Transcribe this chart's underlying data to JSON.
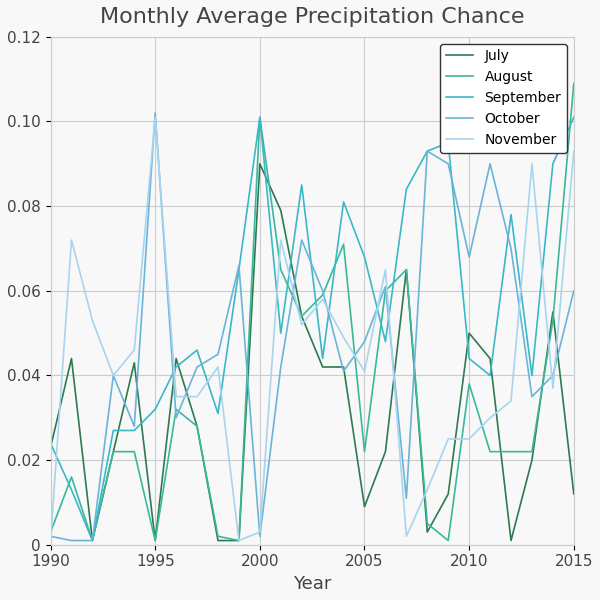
{
  "title": "Monthly Average Precipitation Chance",
  "xlabel": "Year",
  "ylim": [
    0,
    0.12
  ],
  "years": [
    1990,
    1991,
    1992,
    1993,
    1994,
    1995,
    1996,
    1997,
    1998,
    1999,
    2000,
    2001,
    2002,
    2003,
    2004,
    2005,
    2006,
    2007,
    2008,
    2009,
    2010,
    2011,
    2012,
    2013,
    2014,
    2015
  ],
  "series": {
    "July": {
      "color": "#2d7a4f",
      "values": [
        0.023,
        0.044,
        0.001,
        0.022,
        0.043,
        0.001,
        0.044,
        0.028,
        0.001,
        0.001,
        0.09,
        0.079,
        0.054,
        0.042,
        0.042,
        0.009,
        0.022,
        0.065,
        0.003,
        0.012,
        0.05,
        0.044,
        0.001,
        0.02,
        0.055,
        0.012
      ]
    },
    "August": {
      "color": "#3ab89a",
      "values": [
        0.003,
        0.016,
        0.001,
        0.022,
        0.022,
        0.001,
        0.032,
        0.028,
        0.002,
        0.001,
        0.101,
        0.065,
        0.054,
        0.059,
        0.071,
        0.022,
        0.06,
        0.065,
        0.005,
        0.001,
        0.038,
        0.022,
        0.022,
        0.022,
        0.053,
        0.109
      ]
    },
    "September": {
      "color": "#3ab8c8",
      "values": [
        0.024,
        0.013,
        0.001,
        0.027,
        0.027,
        0.032,
        0.042,
        0.046,
        0.031,
        0.065,
        0.101,
        0.05,
        0.085,
        0.044,
        0.081,
        0.068,
        0.048,
        0.084,
        0.093,
        0.095,
        0.044,
        0.04,
        0.078,
        0.04,
        0.09,
        0.101
      ]
    },
    "October": {
      "color": "#6ab4d8",
      "values": [
        0.002,
        0.001,
        0.001,
        0.04,
        0.028,
        0.102,
        0.03,
        0.042,
        0.045,
        0.066,
        0.002,
        0.042,
        0.072,
        0.06,
        0.041,
        0.048,
        0.061,
        0.011,
        0.093,
        0.09,
        0.068,
        0.09,
        0.07,
        0.035,
        0.04,
        0.06
      ]
    },
    "November": {
      "color": "#a8d4ef",
      "values": [
        0.001,
        0.072,
        0.053,
        0.04,
        0.046,
        0.101,
        0.035,
        0.035,
        0.042,
        0.001,
        0.003,
        0.072,
        0.052,
        0.058,
        0.049,
        0.041,
        0.065,
        0.002,
        0.013,
        0.025,
        0.025,
        0.03,
        0.034,
        0.09,
        0.037,
        0.093
      ]
    }
  }
}
